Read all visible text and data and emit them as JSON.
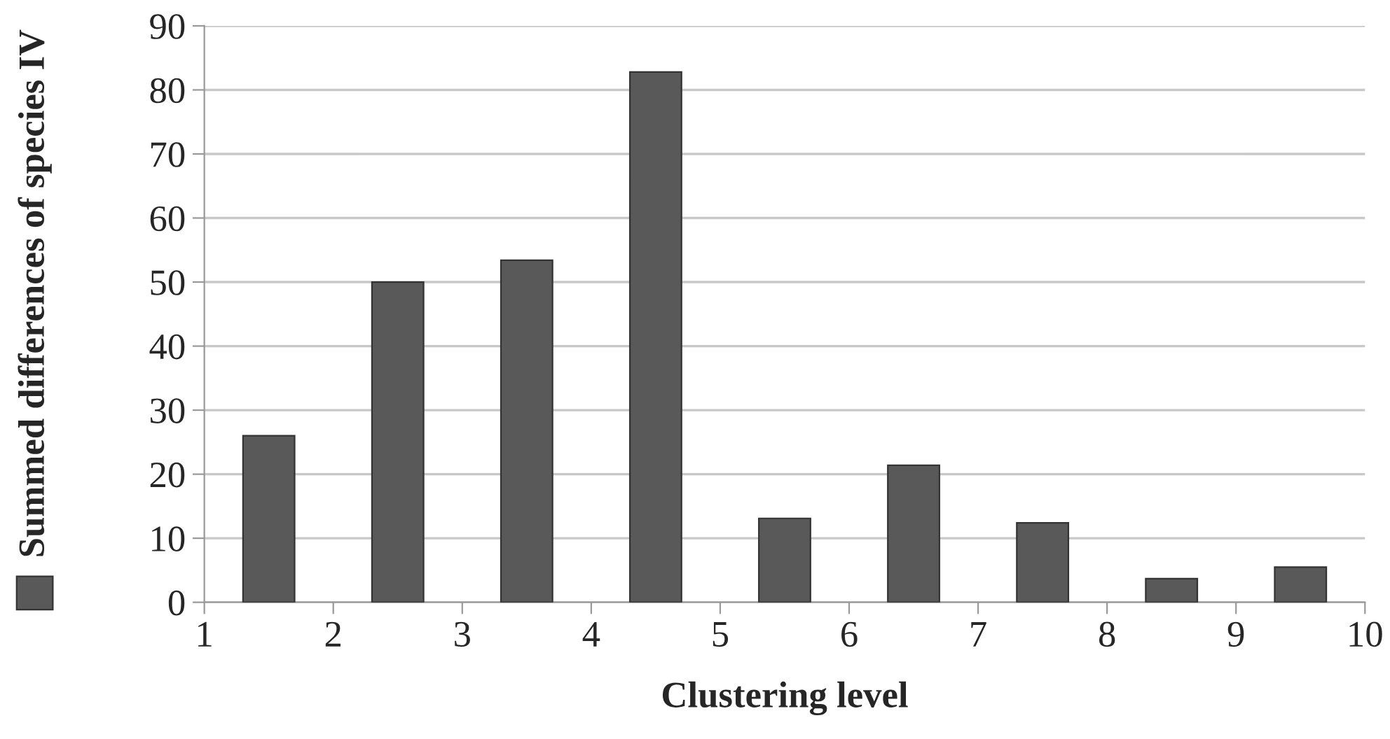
{
  "chart_data": {
    "type": "bar",
    "xlabel": "Clustering level",
    "x": [
      1.5,
      2.5,
      3.5,
      4.5,
      5.5,
      6.5,
      7.5,
      8.5,
      9.5
    ],
    "series": [
      {
        "name": "Summed differences of species IV",
        "color": "#595959",
        "values": [
          26,
          50,
          53.4,
          82.8,
          13.1,
          21.4,
          12.4,
          3.7,
          5.5
        ]
      }
    ],
    "xlim": [
      1,
      10
    ],
    "xticks": [
      1,
      2,
      3,
      4,
      5,
      6,
      7,
      8,
      9,
      10
    ],
    "ylim": [
      0,
      90
    ],
    "yticks": [
      0,
      10,
      20,
      30,
      40,
      50,
      60,
      70,
      80,
      90
    ],
    "grid": "y",
    "legend": "left"
  }
}
